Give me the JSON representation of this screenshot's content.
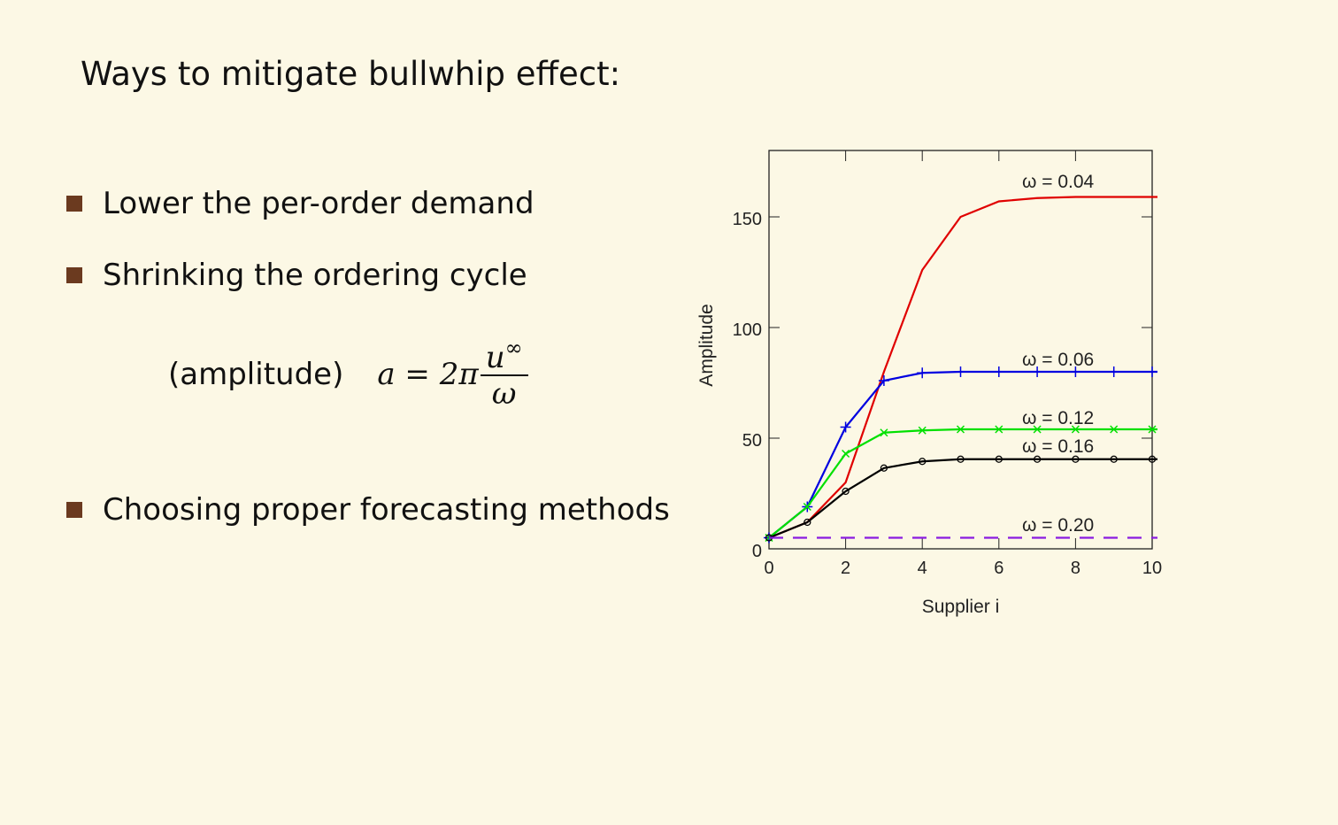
{
  "slide": {
    "title": "Ways to mitigate bullwhip effect:",
    "bullets": [
      "Lower the per-order demand",
      "Shrinking the ordering cycle",
      "Choosing proper forecasting methods"
    ],
    "formula": {
      "label": "(amplitude)",
      "lhs": "a = 2π",
      "numerator": "u",
      "superscript": "∞",
      "denominator": "ω"
    }
  },
  "colors": {
    "background": "#fcf8e5",
    "bullet_marker": "#6b3a1f"
  },
  "chart_data": {
    "type": "line",
    "xlabel": "Supplier i",
    "ylabel": "Amplitude",
    "xlim": [
      0,
      10
    ],
    "ylim": [
      0,
      180
    ],
    "xticks": [
      0,
      2,
      4,
      6,
      8,
      10
    ],
    "yticks": [
      0,
      50,
      100,
      150
    ],
    "series": [
      {
        "name": "ω = 0.04",
        "color": "#e00000",
        "marker": "none",
        "dashed": false,
        "x": [
          0,
          1,
          2,
          3,
          4,
          5,
          6,
          7,
          8,
          9,
          10
        ],
        "values": [
          5,
          12,
          30,
          80,
          126,
          150,
          157,
          158.5,
          159,
          159,
          159
        ]
      },
      {
        "name": "ω = 0.06",
        "color": "#0000e0",
        "marker": "plus",
        "dashed": false,
        "x": [
          0,
          1,
          2,
          3,
          4,
          5,
          6,
          7,
          8,
          9,
          10
        ],
        "values": [
          5,
          19,
          55,
          76,
          79.5,
          80,
          80,
          80,
          80,
          80,
          80
        ]
      },
      {
        "name": "ω = 0.12",
        "color": "#00e000",
        "marker": "x",
        "dashed": false,
        "x": [
          0,
          1,
          2,
          3,
          4,
          5,
          6,
          7,
          8,
          9,
          10
        ],
        "values": [
          5,
          19,
          43,
          52.5,
          53.5,
          54,
          54,
          54,
          54,
          54,
          54
        ]
      },
      {
        "name": "ω = 0.16",
        "color": "#000000",
        "marker": "circle",
        "dashed": false,
        "x": [
          0,
          1,
          2,
          3,
          4,
          5,
          6,
          7,
          8,
          9,
          10
        ],
        "values": [
          5,
          12,
          26,
          36.5,
          39.5,
          40.5,
          40.5,
          40.5,
          40.5,
          40.5,
          40.5
        ]
      },
      {
        "name": "ω = 0.20",
        "color": "#8a1be0",
        "marker": "none",
        "dashed": true,
        "x": [
          0,
          10
        ],
        "values": [
          5,
          5
        ]
      }
    ]
  }
}
